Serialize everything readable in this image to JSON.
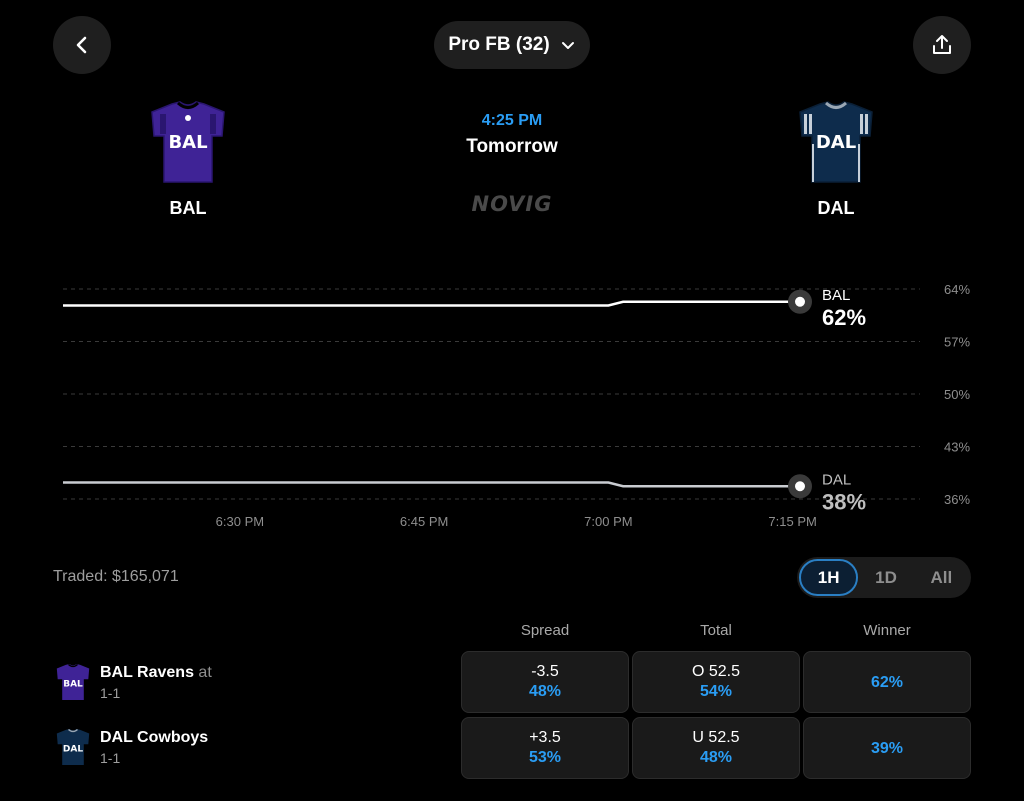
{
  "header": {
    "back_icon": "chevron-left-icon",
    "league_label": "Pro FB (32)",
    "dropdown_icon": "chevron-down-icon",
    "share_icon": "share-icon"
  },
  "game": {
    "home": {
      "abbr": "BAL",
      "jersey_text": "BAL",
      "color": "#4a2a9e"
    },
    "away": {
      "abbr": "DAL",
      "jersey_text": "DAL",
      "color": "#0e2a4a"
    },
    "time": "4:25 PM",
    "day": "Tomorrow",
    "brand": "NOVIG"
  },
  "chart_data": {
    "type": "line",
    "x_ticks": [
      "6:30 PM",
      "6:45 PM",
      "7:00 PM",
      "7:15 PM"
    ],
    "y_ticks": [
      "64%",
      "57%",
      "50%",
      "43%",
      "36%"
    ],
    "ylim": [
      36,
      64
    ],
    "series": [
      {
        "name": "BAL",
        "value_label": "62%",
        "color": "#ffffff",
        "points": [
          [
            0,
            61.8
          ],
          [
            0.74,
            61.8
          ],
          [
            0.76,
            62.3
          ],
          [
            1,
            62.3
          ]
        ]
      },
      {
        "name": "DAL",
        "value_label": "38%",
        "color": "#c9ccd1",
        "points": [
          [
            0,
            38.2
          ],
          [
            0.74,
            38.2
          ],
          [
            0.76,
            37.7
          ],
          [
            1,
            37.7
          ]
        ]
      }
    ]
  },
  "market": {
    "traded": "Traded: $165,071",
    "ranges": [
      "1H",
      "1D",
      "All"
    ],
    "active_range": "1H",
    "columns": [
      "Spread",
      "Total",
      "Winner"
    ],
    "rows": [
      {
        "team": "BAL Ravens",
        "suffix": "at",
        "record": "1-1",
        "jersey": "BAL",
        "spread": "-3.5",
        "spread_pct": "48%",
        "total": "O 52.5",
        "total_pct": "54%",
        "winner_pct": "62%"
      },
      {
        "team": "DAL Cowboys",
        "suffix": "",
        "record": "1-1",
        "jersey": "DAL",
        "spread": "+3.5",
        "spread_pct": "53%",
        "total": "U 52.5",
        "total_pct": "48%",
        "winner_pct": "39%"
      }
    ]
  }
}
